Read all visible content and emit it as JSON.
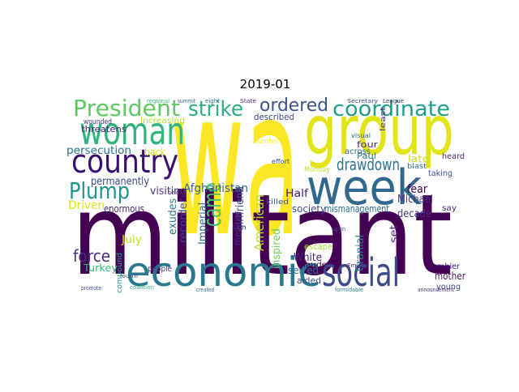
{
  "title": "2019-01",
  "words": [
    "wa",
    "militant",
    "group",
    "week",
    "economic",
    "social",
    "woman",
    "country",
    "President",
    "strike",
    "ordered",
    "coordinate",
    "Plump",
    "drawdown",
    "came",
    "Afghanistan",
    "American",
    "force",
    "persecution",
    "permanently",
    "threatens",
    "increasing",
    "back",
    "visiting",
    "Driven",
    "enormous",
    "July",
    "exudes",
    "recorder",
    "Imperial",
    "girlfriend",
    "medium",
    "Turkey",
    "compound",
    "people",
    "inspired",
    "Half",
    "killed",
    "society",
    "mismanagement",
    "fear",
    "decade",
    "Michael",
    "late",
    "four",
    "Paul",
    "across",
    "heard",
    "taking",
    "say",
    "set",
    "Cranial",
    "White",
    "escape",
    "seized",
    "aided",
    "Maude",
    "mother",
    "young",
    "gambier",
    "Monday",
    "described",
    "number",
    "effort",
    "visual",
    "least",
    "blast",
    "Secretary",
    "League",
    "regional",
    "summit",
    "eight",
    "State",
    "wounded",
    "fourth",
    "announcement",
    "formidable",
    "created",
    "coalition",
    "promote",
    "Emirati",
    "upon",
    "held"
  ]
}
